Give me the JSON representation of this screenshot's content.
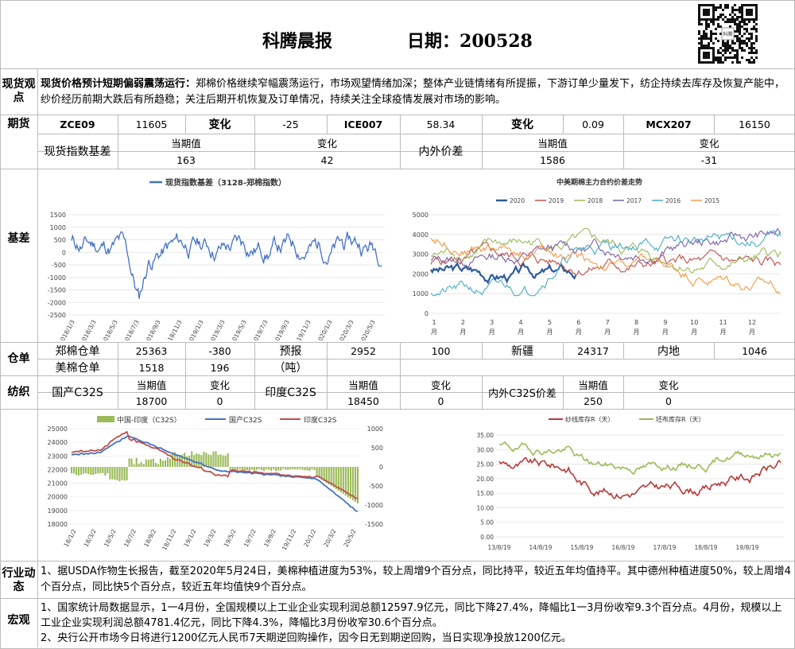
{
  "header": {
    "title": "科腾晨报",
    "date_label": "日期：",
    "date": "200528",
    "qr_caption": "科腾"
  },
  "spot": {
    "label": "现货观点",
    "lead": "现货价格预计短期偏弱震荡运行：",
    "text": "郑棉价格继续窄幅震荡运行，市场观望情绪加深；整体产业链情绪有所提振，下游订单少量发下，纺企持续去库存及恢复产能中，纱价经历前期大跌后有所趋稳；关注后期开机恢复及订单情况，持续关注全球疫情发展对市场的影响。"
  },
  "futures": {
    "label": "期货",
    "zce": "ZCE09",
    "zce_val": "11605",
    "chg_label": "变化",
    "zce_chg": "-25",
    "ice": "ICE007",
    "ice_val": "58.34",
    "ice_chg": "0.09",
    "mcx": "MCX207",
    "mcx_val": "16150"
  },
  "basis_table": {
    "spot_index_basis": "现货指数基差",
    "current": "当期值",
    "change": "变化",
    "basis_val": "163",
    "basis_chg": "42",
    "spread_label": "内外价差",
    "spread_val": "1586",
    "spread_chg": "-31"
  },
  "basis_label": "基差",
  "chart1": {
    "legend": "现货指数基差（3128-郑棉指数）",
    "yticks": [
      "1500",
      "1000",
      "500",
      "0",
      "-500",
      "-1000",
      "-1500",
      "-2000",
      "-2500"
    ],
    "xticks": [
      "2018/1/3",
      "2018/3/3",
      "2018/5/3",
      "2018/7/3",
      "2018/9/3",
      "2018/11/3",
      "2019/1/3",
      "2019/3/3",
      "2019/5/3",
      "2019/7/3",
      "2019/9/3",
      "2019/11/3",
      "2020/1/3",
      "2020/3/3",
      "2020/5/3"
    ]
  },
  "chart2": {
    "title": "中美期棉主力合约价差走势",
    "series": [
      "2020",
      "2019",
      "2018",
      "2017",
      "2016",
      "2015"
    ],
    "colors": [
      "#2e5a9c",
      "#c0504d",
      "#9bbb59",
      "#7b5fa3",
      "#4bacc6",
      "#f29a48"
    ],
    "yticks": [
      "5000",
      "4000",
      "3000",
      "2000",
      "1000",
      "0"
    ],
    "months": [
      "1",
      "2",
      "3",
      "4",
      "5",
      "6",
      "7",
      "8",
      "9",
      "10",
      "11",
      "12"
    ],
    "month_unit": "月"
  },
  "warehouse": {
    "label": "仓单",
    "zheng": "郑棉仓单",
    "zheng_val": "25363",
    "zheng_chg": "-380",
    "us": "美棉仓单",
    "us_val": "1518",
    "us_chg": "196",
    "forecast": "预报",
    "forecast_unit": "（吨）",
    "forecast_val": "2952",
    "forecast_chg": "100",
    "xinjiang": "新疆",
    "xinjiang_val": "24317",
    "inland": "内地",
    "inland_val": "1046"
  },
  "textile": {
    "label": "纺织",
    "domestic": "国产C32S",
    "current": "当期值",
    "change": "变化",
    "domestic_val": "18700",
    "domestic_chg": "0",
    "india": "印度C32S",
    "india_val": "18450",
    "india_chg": "0",
    "spread": "内外C32S价差",
    "spread_val": "250",
    "spread_chg": "0"
  },
  "chart3": {
    "legend": [
      "中国-印度（C32S）",
      "国产C32S",
      "印度C32S"
    ],
    "colors": [
      "#9bbb59",
      "#4472c4",
      "#c0504d"
    ],
    "yleft": [
      "25000",
      "24000",
      "23000",
      "22000",
      "21000",
      "20000",
      "19000",
      "18000"
    ],
    "yright": [
      "1000",
      "500",
      "0",
      "-500",
      "-1000",
      "-1500"
    ],
    "xticks": [
      "18/1/2",
      "18/3/2",
      "18/5/2",
      "18/7/2",
      "18/9/2",
      "18/11/2",
      "19/1/2",
      "19/3/2",
      "19/5/2",
      "19/7/2",
      "19/9/2",
      "19/11/2",
      "20/1/2",
      "20/3/2",
      "20/5/2"
    ]
  },
  "chart4": {
    "legend": [
      "纱线库存R（天）",
      "坯布库存R（天）"
    ],
    "colors": [
      "#b83a3a",
      "#9bbb59"
    ],
    "yticks": [
      "35.00",
      "30.00",
      "25.00",
      "20.00",
      "15.00",
      "10.00",
      "5.00",
      "0.00"
    ],
    "xticks": [
      "13/8/19",
      "14/8/19",
      "15/8/19",
      "16/8/19",
      "17/8/19",
      "18/8/19",
      "19/8/19"
    ]
  },
  "industry": {
    "label": "行业动态",
    "text": "1、据USDA作物生长报告，截至2020年5月24日，美棉种植进度为53%，较上周增9个百分点，同比持平，较近五年均值持平。其中德州种植进度50%，较上周增4个百分点，同比快5个百分点，较近五年均值快9个百分点。"
  },
  "macro": {
    "label": "宏观",
    "p1": "1、国家统计局数据显示，1一4月份，全国规模以上工业企业实现利润总额12597.9亿元，同比下降27.4%，降幅比1一3月份收窄9.3个百分点。4月份，规模以上工业企业实现利润总额4781.4亿元，同比下降4.3%，降幅比3月份收窄30.6个百分点。",
    "p2": "2、央行公开市场今日将进行1200亿元人民币7天期逆回购操作，因今日无到期逆回购，当日实现净投放1200亿元。"
  }
}
